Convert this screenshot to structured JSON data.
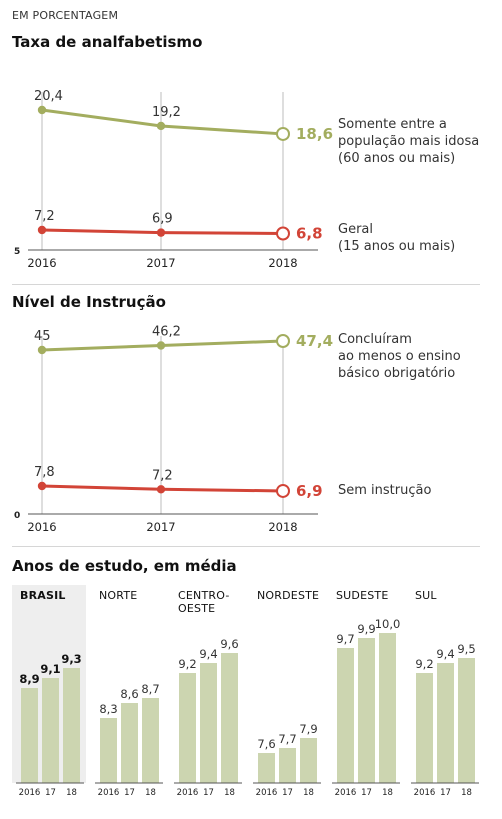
{
  "kicker": "EM PORCENTAGEM",
  "colors": {
    "green": "#a3ad5f",
    "red": "#d24437",
    "bar": "#ccd5b0",
    "brasil_bg": "#eeeeee",
    "axis": "#bdbdbd"
  },
  "chart_data": [
    {
      "type": "line",
      "title": "Taxa de analfabetismo",
      "x": [
        "2016",
        "2017",
        "2018"
      ],
      "y_min_label": "5",
      "series": [
        {
          "name": "Somente entre a população mais idosa (60 anos ou mais)",
          "name_lines": [
            "Somente entre a",
            "população mais idosa",
            "(60 anos ou mais)"
          ],
          "values": [
            20.4,
            19.2,
            18.6
          ],
          "labels": [
            "20,4",
            "19,2",
            "18,6"
          ],
          "color": "#a3ad5f"
        },
        {
          "name": "Geral (15 anos ou mais)",
          "name_lines": [
            "Geral",
            "(15 anos ou mais)"
          ],
          "values": [
            7.2,
            6.9,
            6.8
          ],
          "labels": [
            "7,2",
            "6,9",
            "6,8"
          ],
          "color": "#d24437"
        }
      ]
    },
    {
      "type": "line",
      "title": "Nível de Instrução",
      "x": [
        "2016",
        "2017",
        "2018"
      ],
      "y_min_label": "0",
      "series": [
        {
          "name": "Concluíram ao menos o ensino básico obrigatório",
          "name_lines": [
            "Concluíram",
            "ao menos o ensino",
            "básico obrigatório"
          ],
          "values": [
            45,
            46.2,
            47.4
          ],
          "labels": [
            "45",
            "46,2",
            "47,4"
          ],
          "color": "#a3ad5f"
        },
        {
          "name": "Sem instrução",
          "name_lines": [
            "Sem instrução"
          ],
          "values": [
            7.8,
            7.2,
            6.9
          ],
          "labels": [
            "7,8",
            "7,2",
            "6,9"
          ],
          "color": "#d24437"
        }
      ]
    },
    {
      "type": "bar",
      "title": "Anos de estudo, em média",
      "x_labels": [
        "2016",
        "17",
        "18"
      ],
      "groups": [
        {
          "name_lines": [
            "BRASIL"
          ],
          "highlight": true,
          "values": [
            8.9,
            9.1,
            9.3
          ],
          "labels": [
            "8,9",
            "9,1",
            "9,3"
          ]
        },
        {
          "name_lines": [
            "NORTE"
          ],
          "highlight": false,
          "values": [
            8.3,
            8.6,
            8.7
          ],
          "labels": [
            "8,3",
            "8,6",
            "8,7"
          ]
        },
        {
          "name_lines": [
            "CENTRO-",
            "OESTE"
          ],
          "highlight": false,
          "values": [
            9.2,
            9.4,
            9.6
          ],
          "labels": [
            "9,2",
            "9,4",
            "9,6"
          ]
        },
        {
          "name_lines": [
            "NORDESTE"
          ],
          "highlight": false,
          "values": [
            7.6,
            7.7,
            7.9
          ],
          "labels": [
            "7,6",
            "7,7",
            "7,9"
          ]
        },
        {
          "name_lines": [
            "SUDESTE"
          ],
          "highlight": false,
          "values": [
            9.7,
            9.9,
            10.0
          ],
          "labels": [
            "9,7",
            "9,9",
            "10,0"
          ]
        },
        {
          "name_lines": [
            "SUL"
          ],
          "highlight": false,
          "values": [
            9.2,
            9.4,
            9.5
          ],
          "labels": [
            "9,2",
            "9,4",
            "9,5"
          ]
        }
      ]
    }
  ]
}
